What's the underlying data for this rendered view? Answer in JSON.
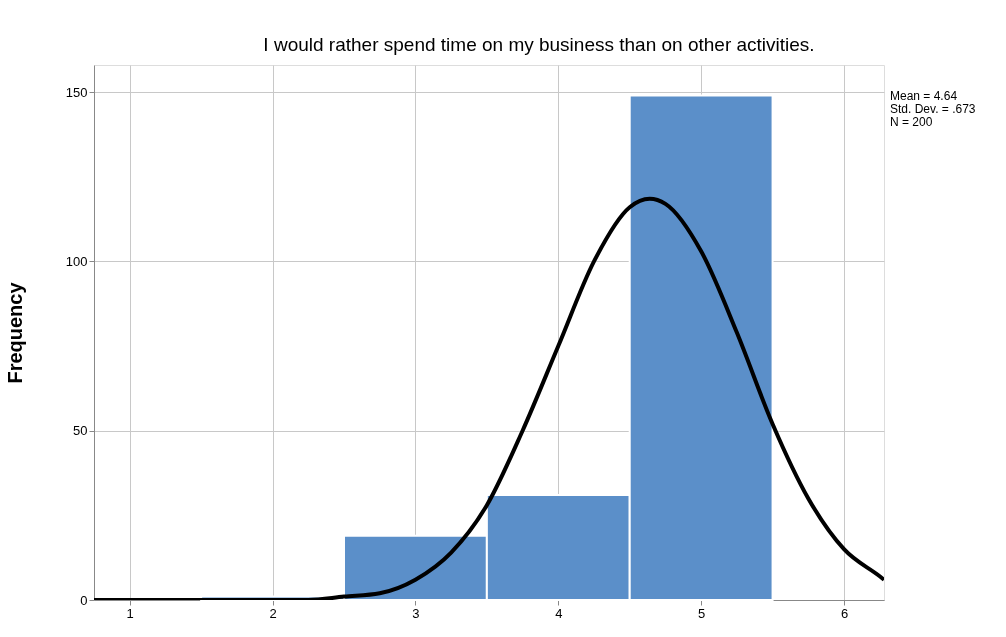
{
  "chart_data": {
    "type": "histogram",
    "title": "I would rather spend time on my business than on other activities.",
    "ylabel": "Frequency",
    "bins": [
      1.5,
      2.5,
      3.5,
      4.5,
      5.5
    ],
    "values": [
      1,
      19,
      31,
      149
    ],
    "color": "#5b8fc9",
    "series": [
      {
        "type": "line",
        "color": "#000000",
        "x": [
          0.75,
          1.5,
          2.0,
          2.25,
          2.5,
          2.75,
          3.0,
          3.25,
          3.5,
          3.75,
          4.0,
          4.25,
          4.5,
          4.64,
          4.75,
          5.0,
          5.25,
          5.5,
          5.75,
          6.0,
          6.25,
          6.28
        ],
        "values": [
          0,
          0,
          0,
          0,
          1,
          2,
          6,
          14,
          28,
          50,
          75,
          100,
          116,
          118.5,
          117,
          103,
          79,
          52,
          30,
          15,
          7,
          6
        ]
      }
    ],
    "xlim": [
      0.75,
      6.28
    ],
    "xticks": [
      1,
      2,
      3,
      4,
      5,
      6
    ],
    "ylim": [
      0,
      158
    ],
    "yticks": [
      0,
      50,
      100,
      150
    ],
    "grid": true,
    "annotations": [
      "Mean = 4.64",
      "Std. Dev. = .673",
      "N = 200"
    ]
  }
}
